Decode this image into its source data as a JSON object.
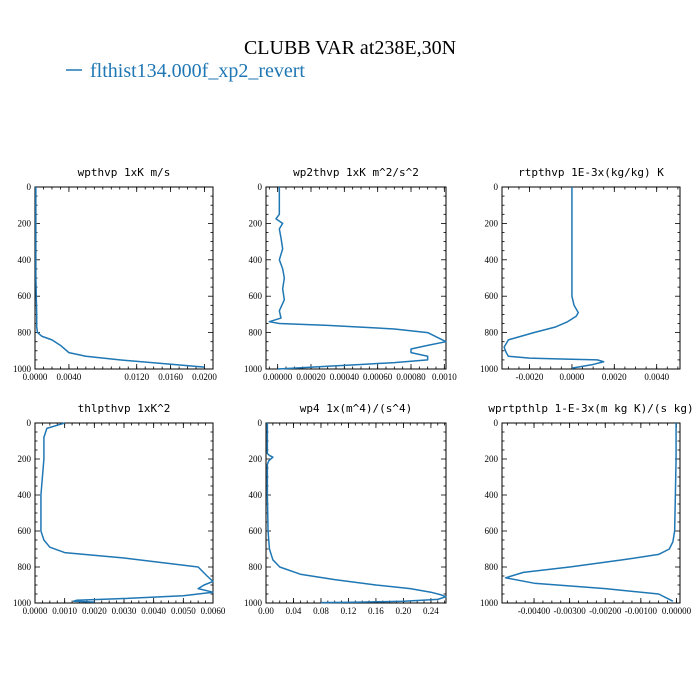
{
  "title": "CLUBB VAR at238E,30N",
  "legend": {
    "label": "flthist134.000f_xp2_revert",
    "color": "#1f77b4"
  },
  "chart_data": [
    {
      "type": "line",
      "title": "wpthvp  1xK m/s",
      "xlim": [
        0,
        0.021
      ],
      "ylim": [
        1000,
        0
      ],
      "xticks": [
        0,
        0.004,
        0.012,
        0.016,
        0.02
      ],
      "xtick_labels": [
        "0.0000",
        "0.0040",
        "0.0120",
        "0.0160",
        "0.0200"
      ],
      "yticks": [
        0,
        200,
        400,
        600,
        800,
        1000
      ],
      "ytick_labels": [
        "0",
        "200",
        "400",
        "600",
        "800",
        "1000"
      ],
      "series": [
        {
          "color": "#1f77b4",
          "x": [
            0.0001,
            0.0001,
            0.0001,
            0.0001,
            0.0002,
            0.0002,
            0.0003,
            0.0008,
            0.002,
            0.003,
            0.004,
            0.006,
            0.01,
            0.015,
            0.02
          ],
          "y": [
            0,
            100,
            300,
            500,
            700,
            770,
            800,
            820,
            840,
            870,
            910,
            930,
            950,
            970,
            990
          ]
        }
      ]
    },
    {
      "type": "line",
      "title": "wp2thvp  1xK m^2/s^2",
      "xlim": [
        -7e-05,
        0.00101
      ],
      "ylim": [
        1000,
        0
      ],
      "xticks": [
        0,
        0.0002,
        0.0004,
        0.0006,
        0.0008,
        0.001
      ],
      "xtick_labels": [
        "0.00000",
        "0.00020",
        "0.00040",
        "0.00060",
        "0.00080",
        "0.0010"
      ],
      "yticks": [
        0,
        200,
        400,
        600,
        800,
        1000
      ],
      "ytick_labels": [
        "0",
        "200",
        "400",
        "600",
        "800",
        "1000"
      ],
      "series": [
        {
          "color": "#1f77b4",
          "x": [
            1e-05,
            1e-05,
            1e-05,
            -1e-05,
            3e-05,
            1e-05,
            2e-05,
            3e-05,
            1e-05,
            3e-05,
            4e-05,
            3e-05,
            4e-05,
            1e-05,
            2e-05,
            -5e-05,
            1e-05,
            0.0003,
            0.0007,
            0.0009,
            0.00101,
            0.0009,
            0.0008,
            0.0008,
            0.0009,
            0.0009,
            0.0007,
            0.0005,
            0.0003,
            0.0001,
            0.0
          ],
          "y": [
            0,
            80,
            150,
            175,
            200,
            230,
            280,
            340,
            400,
            450,
            500,
            560,
            620,
            680,
            720,
            740,
            750,
            760,
            780,
            800,
            850,
            870,
            890,
            910,
            930,
            950,
            965,
            975,
            985,
            995,
            1000
          ]
        }
      ]
    },
    {
      "type": "line",
      "title": "rtpthvp  1E-3x(kg/kg) K",
      "xlim": [
        -0.0033,
        0.0051
      ],
      "ylim": [
        1000,
        0
      ],
      "xticks": [
        -0.002,
        0,
        0.002,
        0.004
      ],
      "xtick_labels": [
        "-0.0020",
        "0.0000",
        "0.0020",
        "0.0040"
      ],
      "yticks": [
        0,
        200,
        400,
        600,
        800,
        1000
      ],
      "ytick_labels": [
        "0",
        "200",
        "400",
        "600",
        "800",
        "1000"
      ],
      "series": [
        {
          "color": "#1f77b4",
          "x": [
            0.0,
            0.0,
            0.0,
            0.0,
            0.0001,
            0.0003,
            0.0002,
            -0.0002,
            -0.0008,
            -0.0018,
            -0.003,
            -0.0032,
            -0.0031,
            -0.003,
            -0.002,
            -0.0005,
            0.0012,
            0.0015,
            0.001,
            0.0
          ],
          "y": [
            0,
            200,
            400,
            600,
            650,
            690,
            710,
            740,
            770,
            800,
            840,
            880,
            910,
            930,
            940,
            945,
            950,
            960,
            975,
            995
          ]
        }
      ]
    },
    {
      "type": "line",
      "title": "thlpthvp  1xK^2",
      "xlim": [
        0,
        0.006
      ],
      "ylim": [
        1000,
        0
      ],
      "xticks": [
        0,
        0.001,
        0.002,
        0.003,
        0.004,
        0.005,
        0.006
      ],
      "xtick_labels": [
        "0.0000",
        "0.0010",
        "0.0020",
        "0.0030",
        "0.0040",
        "0.0050",
        "0.0060"
      ],
      "yticks": [
        0,
        200,
        400,
        600,
        800,
        1000
      ],
      "ytick_labels": [
        "0",
        "200",
        "400",
        "600",
        "800",
        "1000"
      ],
      "series": [
        {
          "color": "#1f77b4",
          "x": [
            0.001,
            0.0008,
            0.0004,
            0.0003,
            0.0003,
            0.0002,
            0.0002,
            0.0003,
            0.0005,
            0.001,
            0.003,
            0.0055,
            0.0058,
            0.006,
            0.0057,
            0.0055,
            0.006,
            0.005,
            0.003,
            0.0014,
            0.0013,
            0.002
          ],
          "y": [
            0,
            10,
            30,
            80,
            200,
            400,
            600,
            650,
            690,
            720,
            750,
            800,
            850,
            880,
            900,
            920,
            940,
            960,
            975,
            985,
            990,
            995
          ]
        }
      ]
    },
    {
      "type": "line",
      "title": "wp4  1x(m^4)/(s^4)",
      "xlim": [
        0,
        0.262
      ],
      "ylim": [
        1000,
        0
      ],
      "xticks": [
        0,
        0.04,
        0.08,
        0.12,
        0.16,
        0.2,
        0.24
      ],
      "xtick_labels": [
        "0.00",
        "0.04",
        "0.08",
        "0.12",
        "0.16",
        "0.20",
        "0.24"
      ],
      "yticks": [
        0,
        200,
        400,
        600,
        800,
        1000
      ],
      "ytick_labels": [
        "0",
        "200",
        "400",
        "600",
        "800",
        "1000"
      ],
      "series": [
        {
          "color": "#1f77b4",
          "x": [
            0.002,
            0.002,
            0.002,
            0.005,
            0.01,
            0.004,
            0.002,
            0.002,
            0.003,
            0.005,
            0.01,
            0.02,
            0.05,
            0.1,
            0.16,
            0.21,
            0.24,
            0.255,
            0.262,
            0.25,
            0.2,
            0.14,
            0.08
          ],
          "y": [
            0,
            100,
            170,
            180,
            190,
            210,
            230,
            400,
            600,
            700,
            760,
            800,
            840,
            870,
            900,
            920,
            940,
            955,
            965,
            980,
            990,
            995,
            998
          ]
        }
      ]
    },
    {
      "type": "line",
      "title": "wprtpthlp  1-E-3x(m kg K)/(s kg)",
      "xlim": [
        -0.0049,
        0.0001
      ],
      "ylim": [
        1000,
        0
      ],
      "xticks": [
        -0.004,
        -0.003,
        -0.002,
        -0.001,
        0
      ],
      "xtick_labels": [
        "-0.00400",
        "-0.00300",
        "-0.00200",
        "-0.00100",
        "0.00000"
      ],
      "yticks": [
        0,
        200,
        400,
        600,
        800,
        1000
      ],
      "ytick_labels": [
        "0",
        "200",
        "400",
        "600",
        "800",
        "1000"
      ],
      "series": [
        {
          "color": "#1f77b4",
          "x": [
            -1e-05,
            -1e-05,
            -3e-05,
            -5e-05,
            -0.0001,
            -0.0002,
            -0.0005,
            -0.0015,
            -0.003,
            -0.0043,
            -0.0048,
            -0.004,
            -0.002,
            -0.0005,
            -0.0001
          ],
          "y": [
            0,
            200,
            400,
            600,
            660,
            700,
            730,
            760,
            800,
            830,
            860,
            890,
            920,
            950,
            990
          ]
        }
      ]
    }
  ]
}
